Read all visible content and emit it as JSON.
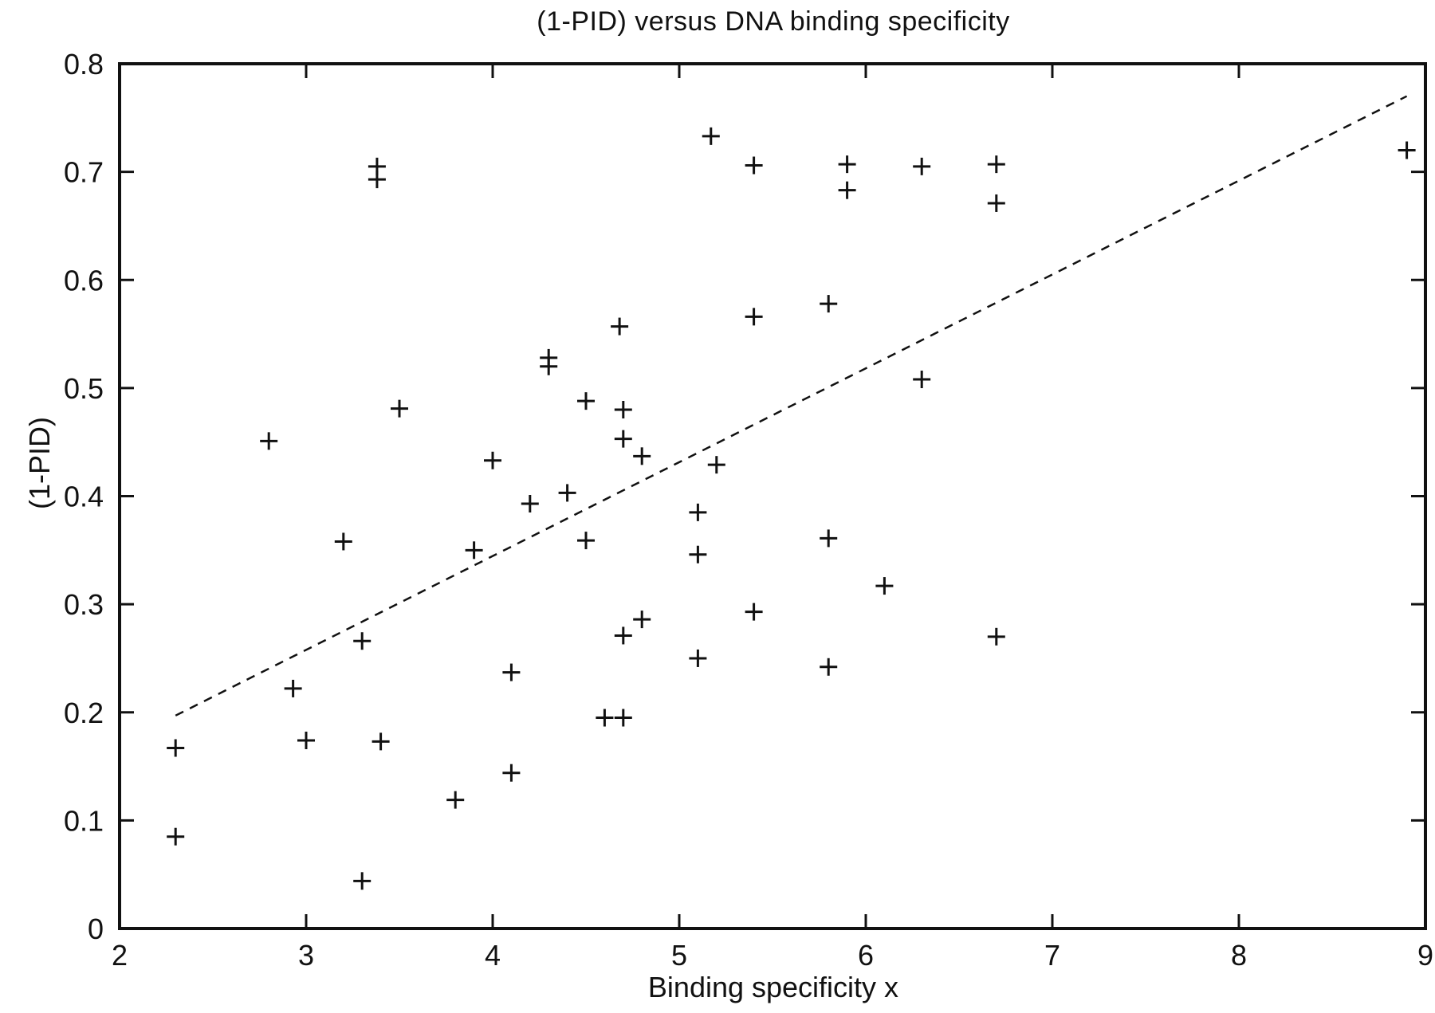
{
  "chart_data": {
    "type": "scatter",
    "title": "(1-PID) versus DNA binding specificity",
    "xlabel": "Binding specificity x",
    "ylabel": "(1-PID)",
    "xlim": [
      2,
      9
    ],
    "ylim": [
      0,
      0.8
    ],
    "xticks": [
      2,
      3,
      4,
      5,
      6,
      7,
      8,
      9
    ],
    "yticks": [
      0,
      0.1,
      0.2,
      0.3,
      0.4,
      0.5,
      0.6,
      0.7,
      0.8
    ],
    "grid": false,
    "legend": "none",
    "marker": "plus",
    "marker_color": "#111111",
    "points": [
      [
        2.3,
        0.167
      ],
      [
        2.3,
        0.085
      ],
      [
        2.8,
        0.451
      ],
      [
        2.93,
        0.222
      ],
      [
        3.0,
        0.174
      ],
      [
        3.2,
        0.358
      ],
      [
        3.3,
        0.266
      ],
      [
        3.3,
        0.044
      ],
      [
        3.38,
        0.705
      ],
      [
        3.38,
        0.693
      ],
      [
        3.4,
        0.173
      ],
      [
        3.5,
        0.481
      ],
      [
        3.8,
        0.119
      ],
      [
        3.9,
        0.35
      ],
      [
        4.0,
        0.433
      ],
      [
        4.1,
        0.237
      ],
      [
        4.1,
        0.144
      ],
      [
        4.2,
        0.393
      ],
      [
        4.3,
        0.528
      ],
      [
        4.3,
        0.52
      ],
      [
        4.4,
        0.403
      ],
      [
        4.5,
        0.488
      ],
      [
        4.5,
        0.359
      ],
      [
        4.6,
        0.195
      ],
      [
        4.7,
        0.195
      ],
      [
        4.68,
        0.557
      ],
      [
        4.7,
        0.48
      ],
      [
        4.7,
        0.453
      ],
      [
        4.7,
        0.271
      ],
      [
        4.8,
        0.437
      ],
      [
        4.8,
        0.286
      ],
      [
        5.1,
        0.385
      ],
      [
        5.1,
        0.346
      ],
      [
        5.1,
        0.25
      ],
      [
        5.17,
        0.733
      ],
      [
        5.2,
        0.429
      ],
      [
        5.4,
        0.706
      ],
      [
        5.4,
        0.566
      ],
      [
        5.4,
        0.293
      ],
      [
        5.8,
        0.578
      ],
      [
        5.8,
        0.361
      ],
      [
        5.8,
        0.242
      ],
      [
        5.9,
        0.707
      ],
      [
        5.9,
        0.683
      ],
      [
        6.1,
        0.317
      ],
      [
        6.3,
        0.705
      ],
      [
        6.3,
        0.508
      ],
      [
        6.7,
        0.707
      ],
      [
        6.7,
        0.671
      ],
      [
        6.7,
        0.27
      ],
      [
        8.9,
        0.72
      ]
    ],
    "trend_line": {
      "style": "dashed",
      "x1": 2.3,
      "y1": 0.197,
      "x2": 8.9,
      "y2": 0.77
    }
  }
}
